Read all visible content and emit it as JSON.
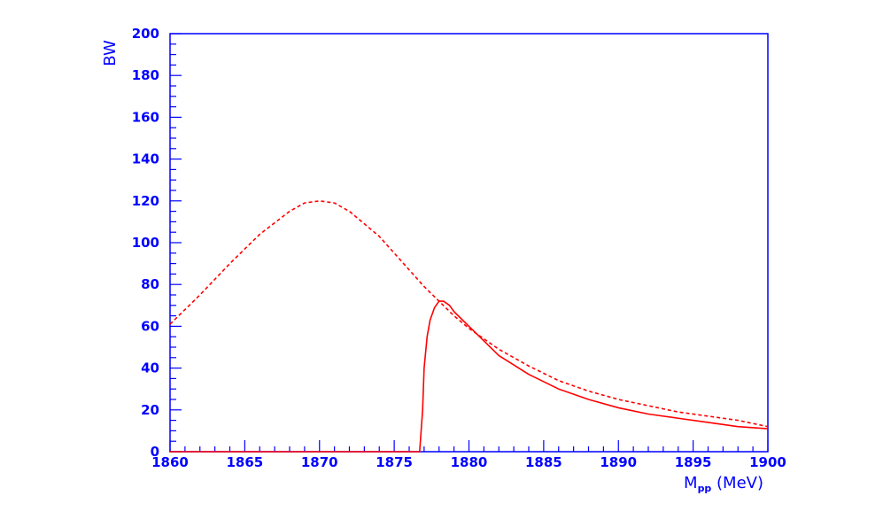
{
  "colors": {
    "axis": "#0000ff",
    "curve": "#ff0000",
    "background": "#ffffff"
  },
  "axes": {
    "x_title_main": "M",
    "x_title_sub": "pp",
    "x_title_unit": " (MeV)",
    "y_title": "BW"
  },
  "chart_data": {
    "type": "line",
    "title": "",
    "xlabel": "M_pp (MeV)",
    "ylabel": "BW",
    "xlim": [
      1860,
      1900
    ],
    "ylim": [
      0,
      200
    ],
    "x_ticks": [
      1860,
      1865,
      1870,
      1875,
      1880,
      1885,
      1890,
      1895,
      1900
    ],
    "x_tick_labels": [
      "1860",
      "1865",
      "1870",
      "1875",
      "1880",
      "1885",
      "1890",
      "1895",
      "1900"
    ],
    "y_ticks": [
      0,
      20,
      40,
      60,
      80,
      100,
      120,
      140,
      160,
      180,
      200
    ],
    "y_tick_labels": [
      "0",
      "20",
      "40",
      "60",
      "80",
      "100",
      "120",
      "140",
      "160",
      "180",
      "200"
    ],
    "grid": false,
    "legend": "none",
    "series": [
      {
        "style": "dashed",
        "color": "#ff0000",
        "x": [
          1860,
          1862,
          1864,
          1866,
          1868,
          1869,
          1870,
          1871,
          1872,
          1874,
          1876,
          1877,
          1878,
          1879,
          1880,
          1882,
          1884,
          1886,
          1888,
          1890,
          1892,
          1894,
          1896,
          1898,
          1900
        ],
        "y": [
          61,
          75,
          90,
          104,
          115,
          119,
          120,
          119,
          115,
          103,
          87,
          79,
          72,
          65,
          59,
          49,
          41,
          34,
          29,
          25,
          22,
          19,
          17,
          15,
          12
        ]
      },
      {
        "style": "solid",
        "color": "#ff0000",
        "x": [
          1860,
          1865,
          1870,
          1875,
          1876.7,
          1876.9,
          1877.0,
          1877.2,
          1877.4,
          1877.7,
          1878.0,
          1878.3,
          1878.7,
          1879,
          1880,
          1881,
          1882,
          1884,
          1886,
          1888,
          1890,
          1892,
          1894,
          1896,
          1898,
          1900
        ],
        "y": [
          0,
          0,
          0,
          0,
          0,
          20,
          40,
          55,
          63,
          69,
          72,
          72,
          70,
          67,
          60,
          53,
          46,
          37,
          30,
          25,
          21,
          18,
          16,
          14,
          12,
          11
        ]
      }
    ]
  }
}
